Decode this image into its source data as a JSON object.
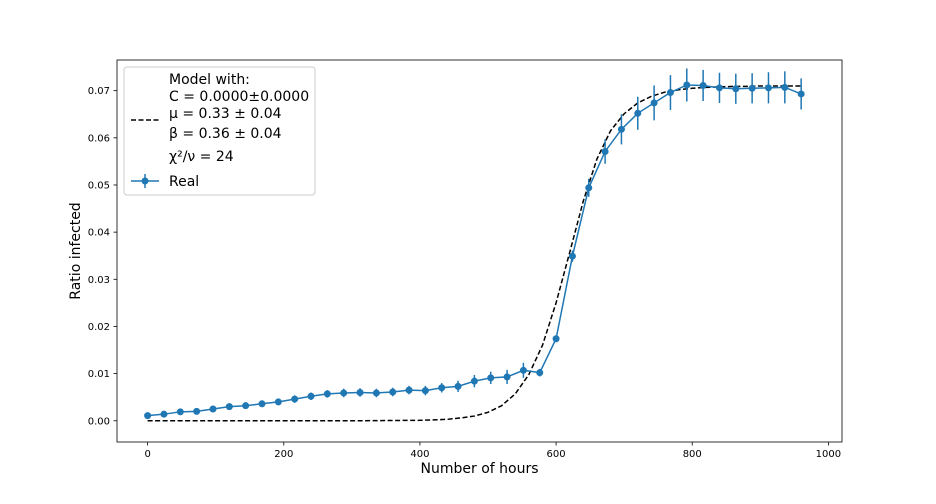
{
  "chart_data": {
    "type": "line",
    "xlabel": "Number of hours",
    "ylabel": "Ratio infected",
    "xlim": [
      -45,
      1020
    ],
    "ylim": [
      -0.0045,
      0.0765
    ],
    "x_ticks": [
      0,
      200,
      400,
      600,
      800,
      1000
    ],
    "y_ticks": [
      0.0,
      0.01,
      0.02,
      0.03,
      0.04,
      0.05,
      0.06,
      0.07
    ],
    "grid": false,
    "legend_placement": "upper-left",
    "legend": {
      "model_lines": [
        "Model with:",
        "C = 0.0000±0.0000",
        "μ = 0.33 ± 0.04",
        "β = 0.36 ± 0.04",
        "χ²/ν = 24"
      ],
      "real_label": "Real"
    },
    "series": [
      {
        "name": "Real",
        "style": "line-markers-errorbars",
        "color": "#1f77b4",
        "x": [
          0,
          24,
          48,
          72,
          96,
          120,
          144,
          168,
          192,
          216,
          240,
          264,
          288,
          312,
          336,
          360,
          384,
          408,
          432,
          456,
          480,
          504,
          528,
          552,
          576,
          600,
          624,
          648,
          672,
          696,
          720,
          744,
          768,
          792,
          816,
          840,
          864,
          888,
          912,
          936,
          960
        ],
        "y": [
          0.0011,
          0.0014,
          0.0019,
          0.002,
          0.0025,
          0.003,
          0.0032,
          0.0036,
          0.004,
          0.0046,
          0.0052,
          0.0057,
          0.0059,
          0.006,
          0.0059,
          0.0061,
          0.0065,
          0.0064,
          0.007,
          0.0073,
          0.0084,
          0.0091,
          0.0093,
          0.0107,
          0.0102,
          0.0174,
          0.0349,
          0.0494,
          0.0571,
          0.0618,
          0.0652,
          0.0674,
          0.0696,
          0.0712,
          0.0711,
          0.0706,
          0.0704,
          0.0705,
          0.0706,
          0.0707,
          0.0693
        ],
        "yerr": [
          0.0005,
          0.0005,
          0.0006,
          0.0006,
          0.0006,
          0.0007,
          0.0007,
          0.0007,
          0.0007,
          0.0008,
          0.0008,
          0.0008,
          0.0009,
          0.0009,
          0.0009,
          0.0009,
          0.0009,
          0.001,
          0.001,
          0.0012,
          0.0013,
          0.0013,
          0.0015,
          0.0016,
          0.0008,
          0.0007,
          0.0012,
          0.0019,
          0.0026,
          0.0032,
          0.0035,
          0.0037,
          0.0037,
          0.0035,
          0.0033,
          0.0032,
          0.0032,
          0.0032,
          0.0033,
          0.0034,
          0.0033
        ]
      },
      {
        "name": "Model with:",
        "style": "dashed",
        "color": "#000000",
        "x": [
          0,
          100,
          200,
          300,
          400,
          420,
          440,
          460,
          480,
          500,
          520,
          540,
          560,
          580,
          600,
          620,
          640,
          660,
          680,
          700,
          720,
          740,
          760,
          780,
          800,
          820,
          840,
          860,
          880,
          900,
          920,
          940,
          960
        ],
        "y": [
          0.0,
          0.0,
          0.0,
          0.0,
          0.0001,
          0.0002,
          0.0003,
          0.0006,
          0.001,
          0.0018,
          0.0032,
          0.0057,
          0.0098,
          0.016,
          0.025,
          0.0357,
          0.0466,
          0.0555,
          0.0615,
          0.0651,
          0.0674,
          0.0688,
          0.0697,
          0.0702,
          0.0705,
          0.0707,
          0.0708,
          0.0709,
          0.0709,
          0.071,
          0.071,
          0.071,
          0.071
        ]
      }
    ]
  }
}
